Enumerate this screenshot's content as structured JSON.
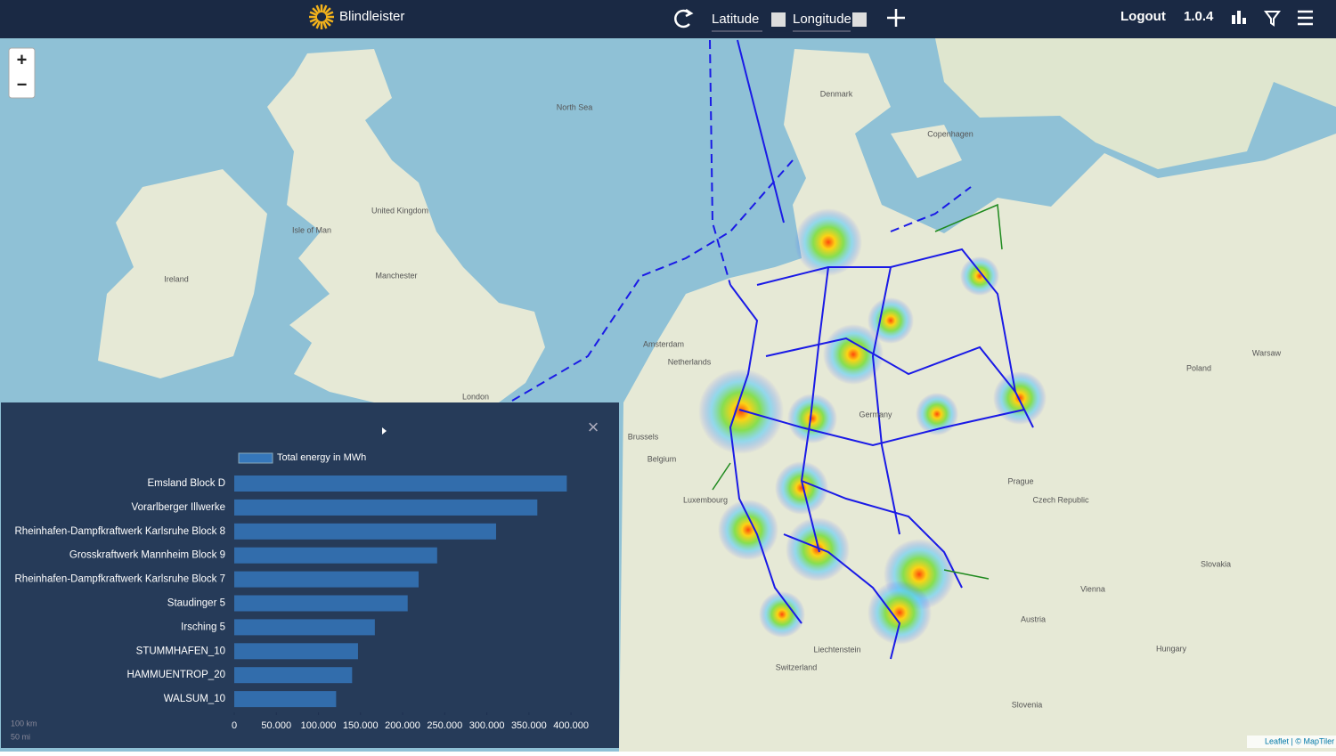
{
  "header": {
    "brand": "Blindleister",
    "latitude": "Latitude",
    "longitude": "Longitude",
    "logout": "Logout",
    "version": "1.0.4"
  },
  "map": {
    "zoom_in": "+",
    "zoom_out": "−",
    "labels": [
      "Denmark",
      "United Kingdom",
      "Ireland",
      "Netherlands",
      "Belgium",
      "Germany",
      "Poland",
      "Czech Republic",
      "Austria",
      "Switzerland",
      "Hungary",
      "Slovakia",
      "Slovenia",
      "Luxembourg",
      "Liechtenstein",
      "North Sea",
      "Prague",
      "Vienna",
      "Warsaw",
      "Brussels",
      "Amsterdam",
      "London",
      "Manchester",
      "Copenhagen",
      "Isle of Man"
    ],
    "scale": [
      "100 km",
      "50 mi"
    ],
    "attribution": "Leaflet | © MapTiler"
  },
  "chart_data": {
    "type": "bar",
    "orientation": "horizontal",
    "categories": [
      "Emsland Block D",
      "Vorarlberger Illwerke",
      "Rheinhafen-Dampfkraftwerk Karlsruhe Block 8",
      "Grosskraftwerk Mannheim Block 9",
      "Rheinhafen-Dampfkraftwerk Karlsruhe Block 7",
      "Staudinger 5",
      "Irsching 5",
      "STUMMHAFEN_10",
      "HAMMUENTROP_20",
      "WALSUM_10"
    ],
    "series": [
      {
        "name": "Total energy in MWh",
        "color": "#3577bb",
        "values": [
          395000,
          360000,
          311000,
          241000,
          219000,
          206000,
          167000,
          147000,
          140000,
          121000
        ]
      }
    ],
    "xlim": [
      0,
      420000
    ],
    "xticks": [
      0,
      {
        "value": 50000,
        "label": "50.000"
      },
      {
        "value": 100000,
        "label": "100.000"
      },
      {
        "value": 150000,
        "label": "150.000"
      },
      {
        "value": 200000,
        "label": "200.000"
      },
      {
        "value": 250000,
        "label": "250.000"
      },
      {
        "value": 300000,
        "label": "300.000"
      },
      {
        "value": 350000,
        "label": "350.000"
      },
      {
        "value": 400000,
        "label": "400.000"
      }
    ],
    "grid": false
  }
}
